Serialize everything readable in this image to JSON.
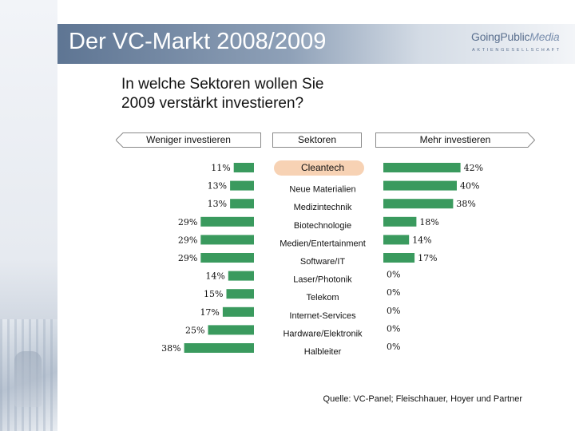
{
  "slide": {
    "title": "Der VC-Markt 2008/2009",
    "logo": {
      "part1": "GoingPublic",
      "part2": "Media",
      "subline": "AKTIENGESELLSCHAFT"
    },
    "question_line1": "In welche Sektoren wollen Sie",
    "question_line2": "2009 verstärkt investieren?",
    "source": "Quelle: VC-Panel; Fleischhauer, Hoyer und Partner"
  },
  "chart_data": {
    "type": "bar",
    "header_left": "Weniger investieren",
    "header_center": "Sektoren",
    "header_right": "Mehr investieren",
    "categories": [
      "Cleantech",
      "Neue Materialien",
      "Medizintechnik",
      "Biotechnologie",
      "Medien/Entertainment",
      "Software/IT",
      "Laser/Photonik",
      "Telekom",
      "Internet-Services",
      "Hardware/Elektronik",
      "Halbleiter"
    ],
    "highlighted_category": "Cleantech",
    "series": [
      {
        "name": "Weniger investieren",
        "values": [
          11,
          13,
          13,
          29,
          29,
          29,
          14,
          15,
          17,
          25,
          38
        ],
        "labels": [
          "11%",
          "13%",
          "13%",
          "29%",
          "29%",
          "29%",
          "14%",
          "15%",
          "17%",
          "25%",
          "38%"
        ]
      },
      {
        "name": "Mehr investieren",
        "values": [
          42,
          40,
          38,
          18,
          14,
          17,
          0,
          0,
          0,
          0,
          0
        ],
        "labels": [
          "42%",
          "40%",
          "38%",
          "18%",
          "14%",
          "17%",
          "0%",
          "0%",
          "0%",
          "0%",
          "0%"
        ]
      }
    ],
    "bar_color": "#3a9a5e",
    "highlight_color": "#f7d2b4"
  }
}
